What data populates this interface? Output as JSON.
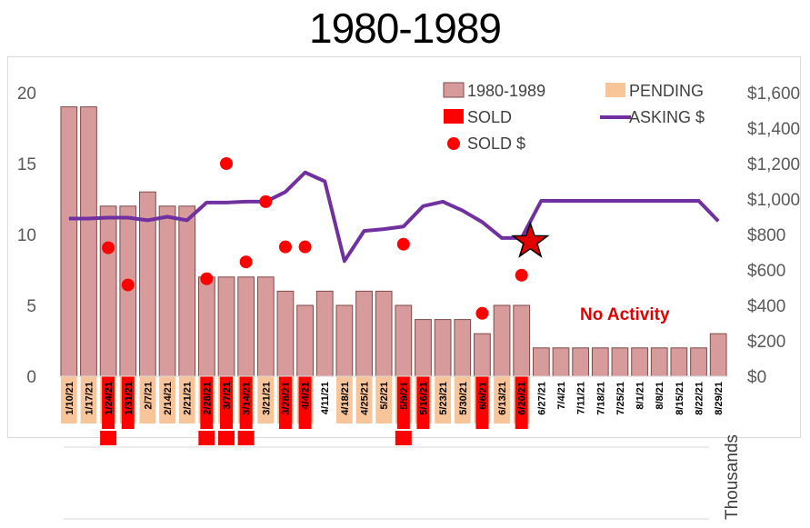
{
  "chart_data": {
    "type": "bar",
    "title": "1980-1989",
    "categories": [
      "1/10/21",
      "1/17/21",
      "1/24/21",
      "1/31/21",
      "2/7/21",
      "2/14/21",
      "2/21/21",
      "2/28/21",
      "3/7/21",
      "3/14/21",
      "3/21/21",
      "3/28/21",
      "4/4/21",
      "4/11/21",
      "4/18/21",
      "4/25/21",
      "5/2/21",
      "5/9/21",
      "5/16/21",
      "5/23/21",
      "5/30/21",
      "6/6/21",
      "6/13/21",
      "6/20/21",
      "6/27/21",
      "7/4/21",
      "7/11/21",
      "7/18/21",
      "7/25/21",
      "8/1/21",
      "8/8/21",
      "8/15/21",
      "8/22/21",
      "8/29/21"
    ],
    "series": [
      {
        "name": "1980-1989",
        "type": "bar",
        "axis": "left",
        "color": "#d79b9b",
        "values": [
          19,
          19,
          12,
          12,
          13,
          12,
          12,
          7,
          7,
          7,
          7,
          6,
          5,
          6,
          5,
          6,
          6,
          5,
          4,
          4,
          4,
          3,
          5,
          5,
          2,
          2,
          2,
          2,
          2,
          2,
          2,
          2,
          2,
          3
        ]
      },
      {
        "name": "PENDING",
        "type": "bar",
        "axis": "left",
        "color": "#f8c499",
        "values": [
          1,
          1,
          1,
          1,
          1,
          1,
          1,
          1,
          1,
          1,
          1,
          1,
          1,
          0,
          1,
          1,
          1,
          1,
          1,
          1,
          1,
          1,
          1,
          1,
          0,
          0,
          0,
          0,
          0,
          0,
          0,
          0,
          0,
          0
        ]
      },
      {
        "name": "SOLD",
        "type": "bar",
        "axis": "left",
        "color": "#ff0000",
        "values": [
          0,
          0,
          1,
          1,
          0,
          0,
          0,
          1,
          1,
          1,
          0,
          1,
          1,
          0,
          0,
          0,
          0,
          1,
          1,
          0,
          0,
          1,
          0,
          1,
          0,
          0,
          0,
          0,
          0,
          0,
          0,
          0,
          0,
          0
        ]
      },
      {
        "name": "ASKING $",
        "type": "line",
        "axis": "right",
        "color": "#7030a0",
        "values": [
          890,
          890,
          895,
          895,
          880,
          900,
          880,
          980,
          980,
          985,
          985,
          1040,
          1150,
          1100,
          650,
          820,
          830,
          845,
          960,
          985,
          935,
          870,
          780,
          780,
          990,
          990,
          990,
          990,
          990,
          990,
          990,
          990,
          990,
          875
        ]
      },
      {
        "name": "SOLD $",
        "type": "scatter",
        "axis": "right",
        "color": "#ff0000",
        "points": [
          {
            "x": "1/24/21",
            "y": 725
          },
          {
            "x": "1/31/21",
            "y": 515
          },
          {
            "x": "2/28/21",
            "y": 550
          },
          {
            "x": "3/7/21",
            "y": 1200
          },
          {
            "x": "3/14/21",
            "y": 645
          },
          {
            "x": "3/21/21",
            "y": 985
          },
          {
            "x": "3/28/21",
            "y": 730
          },
          {
            "x": "4/4/21",
            "y": 730
          },
          {
            "x": "5/9/21",
            "y": 745
          },
          {
            "x": "6/6/21",
            "y": 355
          },
          {
            "x": "6/20/21",
            "y": 570
          }
        ]
      }
    ],
    "y_left": {
      "ylim": [
        0,
        20
      ],
      "ticks": [
        "0",
        "5",
        "10",
        "15",
        "20"
      ]
    },
    "y_right": {
      "ylim": [
        0,
        1600
      ],
      "ticks": [
        "$0",
        "$200",
        "$400",
        "$600",
        "$800",
        "$1,000",
        "$1,200",
        "$1,400",
        "$1,600"
      ],
      "unit_label": "Thousands"
    },
    "star_marker": {
      "x": "6/27/21",
      "y": 760,
      "color": "#e00000"
    },
    "annotation": "No Activity",
    "legend_position": "top-right",
    "grid": false
  }
}
